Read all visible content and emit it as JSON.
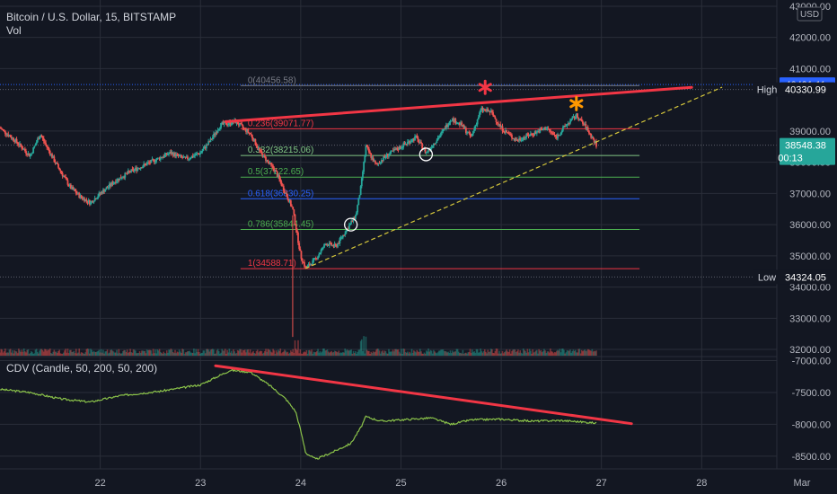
{
  "chart_data": {
    "type": "candlestick",
    "title": "Bitcoin / U.S. Dollar, 15, BITSTAMP",
    "volume_label": "Vol",
    "currency": "USD",
    "price_axis": {
      "range": [
        31800,
        43200
      ],
      "ticks": [
        "43000.00",
        "42000.00",
        "41000.00",
        "39000.00",
        "38000.00",
        "37000.00",
        "36000.00",
        "35000.00",
        "34000.00",
        "33000.00",
        "32000.00"
      ],
      "tick_values": [
        43000,
        42000,
        41000,
        39000,
        38000,
        37000,
        36000,
        35000,
        34000,
        33000,
        32000
      ]
    },
    "price_badges": [
      {
        "label": "",
        "value": "40491.11",
        "price": 40491.11,
        "color": "#2962ff"
      },
      {
        "label": "High",
        "value": "40330.99",
        "price": 40330.99,
        "color": "#131722"
      },
      {
        "label": "",
        "value": "38548.38",
        "price": 38548.38,
        "color": "#26a69a",
        "countdown": "00:13"
      },
      {
        "label": "Low",
        "value": "34324.05",
        "price": 34324.05,
        "color": "#131722"
      }
    ],
    "fibonacci": {
      "anchor_day": 23.4,
      "end_day": 27.38,
      "levels": [
        {
          "label": "0(40456.58)",
          "price": 40456.58,
          "color": "#787b86"
        },
        {
          "label": "0.236(39071.77)",
          "price": 39071.77,
          "color": "#f23645"
        },
        {
          "label": "0.382(38215.06)",
          "price": 38215.06,
          "color": "#81c784"
        },
        {
          "label": "0.5(37522.65)",
          "price": 37522.65,
          "color": "#4caf50"
        },
        {
          "label": "0.618(36830.25)",
          "price": 36830.25,
          "color": "#2962ff"
        },
        {
          "label": "0.786(35844.45)",
          "price": 35844.45,
          "color": "#4caf50"
        },
        {
          "label": "1(34588.71)",
          "price": 34588.71,
          "color": "#f23645"
        }
      ]
    },
    "price_path": [
      {
        "day": 21.0,
        "price": 39100
      },
      {
        "day": 21.15,
        "price": 38700
      },
      {
        "day": 21.3,
        "price": 38200
      },
      {
        "day": 21.4,
        "price": 38900
      },
      {
        "day": 21.55,
        "price": 38000
      },
      {
        "day": 21.7,
        "price": 37200
      },
      {
        "day": 21.8,
        "price": 36900
      },
      {
        "day": 21.9,
        "price": 36700
      },
      {
        "day": 22.0,
        "price": 37000
      },
      {
        "day": 22.15,
        "price": 37400
      },
      {
        "day": 22.3,
        "price": 37700
      },
      {
        "day": 22.5,
        "price": 38000
      },
      {
        "day": 22.7,
        "price": 38300
      },
      {
        "day": 22.85,
        "price": 38100
      },
      {
        "day": 23.0,
        "price": 38300
      },
      {
        "day": 23.1,
        "price": 38700
      },
      {
        "day": 23.2,
        "price": 39200
      },
      {
        "day": 23.35,
        "price": 39300
      },
      {
        "day": 23.5,
        "price": 38900
      },
      {
        "day": 23.6,
        "price": 38300
      },
      {
        "day": 23.75,
        "price": 37700
      },
      {
        "day": 23.85,
        "price": 37000
      },
      {
        "day": 23.92,
        "price": 36500
      },
      {
        "day": 24.0,
        "price": 35000
      },
      {
        "day": 24.05,
        "price": 34600
      },
      {
        "day": 24.15,
        "price": 34900
      },
      {
        "day": 24.25,
        "price": 35400
      },
      {
        "day": 24.35,
        "price": 35300
      },
      {
        "day": 24.45,
        "price": 35800
      },
      {
        "day": 24.55,
        "price": 36300
      },
      {
        "day": 24.6,
        "price": 37200
      },
      {
        "day": 24.65,
        "price": 38500
      },
      {
        "day": 24.75,
        "price": 37900
      },
      {
        "day": 24.85,
        "price": 38200
      },
      {
        "day": 25.0,
        "price": 38500
      },
      {
        "day": 25.15,
        "price": 38800
      },
      {
        "day": 25.25,
        "price": 38300
      },
      {
        "day": 25.4,
        "price": 38900
      },
      {
        "day": 25.5,
        "price": 39400
      },
      {
        "day": 25.6,
        "price": 39200
      },
      {
        "day": 25.7,
        "price": 38800
      },
      {
        "day": 25.8,
        "price": 39700
      },
      {
        "day": 25.9,
        "price": 39600
      },
      {
        "day": 26.0,
        "price": 39100
      },
      {
        "day": 26.15,
        "price": 38700
      },
      {
        "day": 26.3,
        "price": 38900
      },
      {
        "day": 26.45,
        "price": 39100
      },
      {
        "day": 26.55,
        "price": 38800
      },
      {
        "day": 26.65,
        "price": 39200
      },
      {
        "day": 26.75,
        "price": 39500
      },
      {
        "day": 26.85,
        "price": 39100
      },
      {
        "day": 26.95,
        "price": 38548
      }
    ],
    "trendlines": [
      {
        "name": "resistance",
        "color": "#f23645",
        "from": {
          "day": 23.25,
          "price": 39300
        },
        "to": {
          "day": 27.9,
          "price": 40400
        }
      },
      {
        "name": "support",
        "color": "#d4c63b",
        "dashed": true,
        "from": {
          "day": 24.05,
          "price": 34600
        },
        "to": {
          "day": 28.2,
          "price": 40400
        }
      }
    ],
    "markers": [
      {
        "name": "red-asterisk",
        "day": 25.84,
        "price": 40400,
        "color": "#f23645"
      },
      {
        "name": "orange-asterisk",
        "day": 26.75,
        "price": 39880,
        "color": "#ff9800"
      }
    ],
    "circles": [
      {
        "day": 25.25,
        "price": 38250
      },
      {
        "day": 24.5,
        "price": 36000
      }
    ],
    "cdv": {
      "label": "CDV (Candle, 50, 200, 50, 200)",
      "range": [
        -8700,
        -6950
      ],
      "ticks": [
        "-7000.00",
        "-7500.00",
        "-8000.00",
        "-8500.00"
      ],
      "tick_values": [
        -7000,
        -7500,
        -8000,
        -8500
      ],
      "path": [
        {
          "day": 21.0,
          "value": -7450
        },
        {
          "day": 21.3,
          "value": -7500
        },
        {
          "day": 21.6,
          "value": -7600
        },
        {
          "day": 21.9,
          "value": -7650
        },
        {
          "day": 22.2,
          "value": -7550
        },
        {
          "day": 22.6,
          "value": -7480
        },
        {
          "day": 23.0,
          "value": -7380
        },
        {
          "day": 23.3,
          "value": -7150
        },
        {
          "day": 23.5,
          "value": -7180
        },
        {
          "day": 23.7,
          "value": -7400
        },
        {
          "day": 23.85,
          "value": -7600
        },
        {
          "day": 23.95,
          "value": -7800
        },
        {
          "day": 24.0,
          "value": -8100
        },
        {
          "day": 24.05,
          "value": -8450
        },
        {
          "day": 24.15,
          "value": -8550
        },
        {
          "day": 24.3,
          "value": -8450
        },
        {
          "day": 24.5,
          "value": -8300
        },
        {
          "day": 24.6,
          "value": -8050
        },
        {
          "day": 24.65,
          "value": -7880
        },
        {
          "day": 24.8,
          "value": -7950
        },
        {
          "day": 25.0,
          "value": -7930
        },
        {
          "day": 25.3,
          "value": -7900
        },
        {
          "day": 25.5,
          "value": -8000
        },
        {
          "day": 25.7,
          "value": -7930
        },
        {
          "day": 26.0,
          "value": -7920
        },
        {
          "day": 26.3,
          "value": -7950
        },
        {
          "day": 26.6,
          "value": -7940
        },
        {
          "day": 26.95,
          "value": -7980
        }
      ],
      "trendline": {
        "color": "#f23645",
        "from": {
          "day": 23.15,
          "value": -7080
        },
        "to": {
          "day": 27.3,
          "value": -7990
        }
      }
    },
    "x_axis": {
      "range": [
        21.0,
        29.35
      ],
      "ticks": [
        {
          "label": "22",
          "day": 22
        },
        {
          "label": "23",
          "day": 23
        },
        {
          "label": "24",
          "day": 24
        },
        {
          "label": "25",
          "day": 25
        },
        {
          "label": "26",
          "day": 26
        },
        {
          "label": "27",
          "day": 27
        },
        {
          "label": "28",
          "day": 28
        },
        {
          "label": "Mar",
          "day": 29
        }
      ]
    },
    "colors": {
      "up": "#26a69a",
      "down": "#ef5350",
      "background": "#131722",
      "grid": "#2a2e39",
      "axis_text": "#b2b5be",
      "cdv_line": "#8bc34a"
    }
  }
}
